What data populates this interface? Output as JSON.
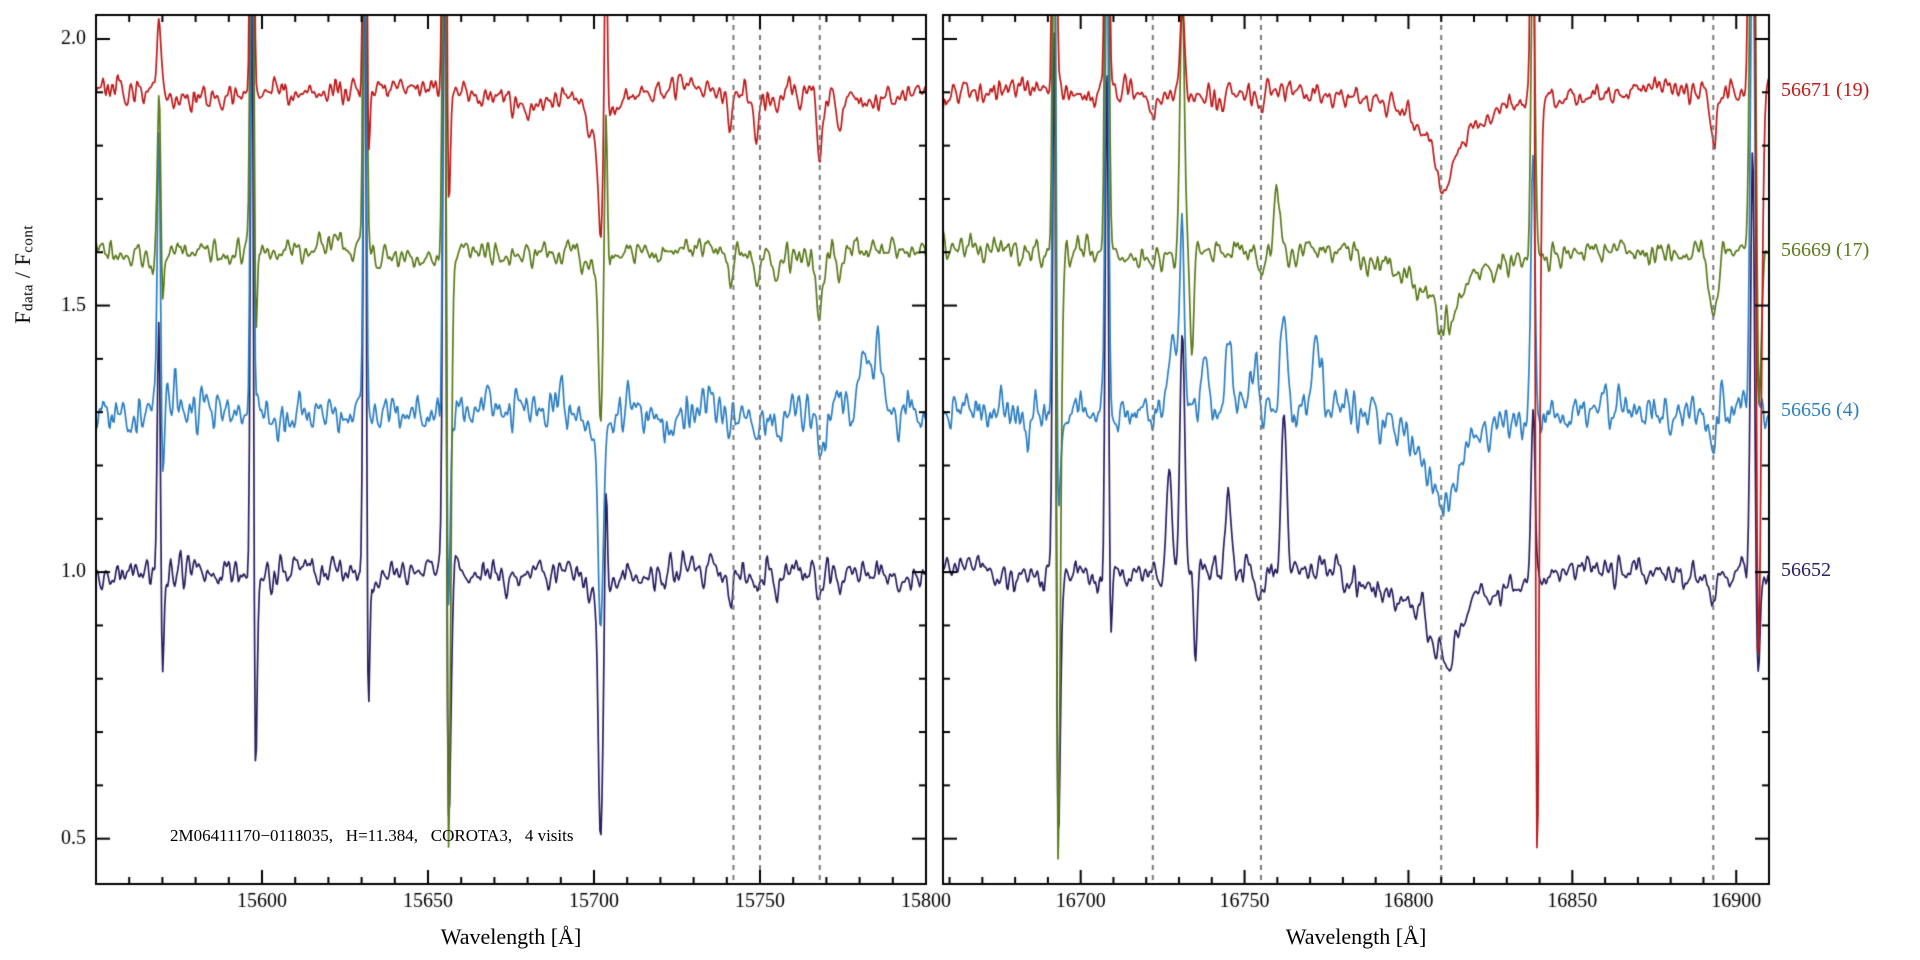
{
  "chart_data": {
    "type": "line",
    "title": "",
    "xlabel": "Wavelength [Å]",
    "ylabel": {
      "f1": "F",
      "sub1": "data",
      "sep": " / F",
      "sub2": "cont"
    },
    "annotation": "2M06411170−0118035,   H=11.384,   COROTA3,   4 visits",
    "ylim": [
      0.415,
      2.045
    ],
    "yticks": [
      0.5,
      1.0,
      1.5,
      2.0
    ],
    "ytick_labels": [
      "0.5",
      "1.0",
      "1.5",
      "2.0"
    ],
    "y_minor_step": 0.1,
    "grid": false,
    "legend_position": "right-outside",
    "dashed_line_color": "#7a7a7a",
    "axis_color": "#000000",
    "panels": [
      {
        "xlim": [
          15550,
          15800
        ],
        "xticks": [
          15600,
          15650,
          15700,
          15750,
          15800
        ],
        "xtick_labels": [
          "15600",
          "15650",
          "15700",
          "15750",
          "15800"
        ],
        "x_minor_step": 10,
        "dashed_lines": [
          15742,
          15750,
          15768
        ]
      },
      {
        "xlim": [
          16658,
          16910
        ],
        "xticks": [
          16700,
          16750,
          16800,
          16850,
          16900
        ],
        "xtick_labels": [
          "16700",
          "16750",
          "16800",
          "16850",
          "16900"
        ],
        "x_minor_step": 10,
        "dashed_lines": [
          16722,
          16755,
          16810,
          16893
        ]
      }
    ],
    "series": [
      {
        "label": "56652",
        "color": "#2a2060",
        "offset": 1.0,
        "noise": 0.014,
        "seed": 11,
        "features": [
          [
            [
              15569,
              0.5,
              0.5
            ],
            [
              15569.9,
              0.5,
              -0.28
            ],
            [
              15597,
              0.45,
              1.3
            ],
            [
              15597.9,
              0.5,
              -0.45
            ],
            [
              15631,
              0.45,
              1.4
            ],
            [
              15631.8,
              0.5,
              -0.38
            ],
            [
              15655,
              0.5,
              1.4
            ],
            [
              15656.1,
              0.7,
              -0.58
            ],
            [
              15701,
              3.5,
              -0.05
            ],
            [
              15702,
              0.7,
              -0.44
            ],
            [
              15703.6,
              0.4,
              0.22
            ],
            [
              15741,
              0.8,
              -0.05
            ],
            [
              15749,
              0.8,
              -0.05
            ],
            [
              15755,
              0.8,
              -0.04
            ],
            [
              15768,
              0.9,
              -0.06
            ],
            [
              15774,
              0.8,
              -0.04
            ]
          ],
          [
            [
              16692,
              0.5,
              1.3
            ],
            [
              16692.9,
              0.8,
              -0.6
            ],
            [
              16708,
              0.5,
              1.0
            ],
            [
              16709,
              0.5,
              -0.15
            ],
            [
              16727,
              0.8,
              0.2
            ],
            [
              16731,
              0.7,
              0.45
            ],
            [
              16735,
              0.6,
              -0.15
            ],
            [
              16745,
              0.8,
              0.15
            ],
            [
              16755,
              0.8,
              -0.05
            ],
            [
              16762,
              0.8,
              0.3
            ],
            [
              16811,
              3,
              -0.08
            ],
            [
              16811,
              8,
              -0.05
            ],
            [
              16811,
              18,
              -0.035
            ],
            [
              16838,
              0.6,
              0.3
            ],
            [
              16893,
              1.0,
              -0.07
            ],
            [
              16905,
              0.6,
              0.8
            ],
            [
              16906.6,
              0.6,
              -0.2
            ]
          ]
        ]
      },
      {
        "label": "56656 (4)",
        "color": "#2d7fc3",
        "offset": 1.3,
        "noise": 0.021,
        "seed": 22,
        "features": [
          [
            [
              15569,
              0.5,
              0.55
            ],
            [
              15570,
              0.5,
              -0.2
            ],
            [
              15597,
              0.45,
              1.1
            ],
            [
              15631,
              0.45,
              0.95
            ],
            [
              15655,
              0.5,
              1.1
            ],
            [
              15656,
              0.6,
              -0.5
            ],
            [
              15701,
              3.5,
              -0.06
            ],
            [
              15702,
              0.7,
              -0.35
            ],
            [
              15741,
              0.8,
              -0.05
            ],
            [
              15749,
              0.8,
              -0.06
            ],
            [
              15755,
              0.8,
              -0.05
            ],
            [
              15768,
              0.9,
              -0.09
            ],
            [
              15782,
              2,
              0.1
            ],
            [
              15786,
              1,
              0.12
            ]
          ],
          [
            [
              16692,
              0.5,
              1.2
            ],
            [
              16693,
              0.6,
              -0.25
            ],
            [
              16708,
              0.5,
              0.95
            ],
            [
              16728,
              1.5,
              0.12
            ],
            [
              16731,
              0.7,
              0.35
            ],
            [
              16738,
              1,
              0.1
            ],
            [
              16745,
              1.2,
              0.12
            ],
            [
              16753,
              1,
              0.1
            ],
            [
              16762,
              1,
              0.18
            ],
            [
              16772,
              0.9,
              0.14
            ],
            [
              16811,
              3,
              -0.09
            ],
            [
              16811,
              8,
              -0.05
            ],
            [
              16811,
              18,
              -0.035
            ],
            [
              16838,
              0.6,
              0.5
            ],
            [
              16893,
              1,
              -0.08
            ],
            [
              16905,
              0.7,
              0.9
            ]
          ]
        ]
      },
      {
        "label": "56669 (17)",
        "color": "#5c7a1c",
        "offset": 1.6,
        "noise": 0.013,
        "seed": 33,
        "features": [
          [
            [
              15569,
              0.5,
              0.3
            ],
            [
              15570,
              0.4,
              -0.12
            ],
            [
              15597,
              0.45,
              1.4
            ],
            [
              15598,
              0.5,
              -0.2
            ],
            [
              15631,
              0.45,
              1.3
            ],
            [
              15655,
              0.5,
              1.4
            ],
            [
              15656.1,
              0.7,
              -1.2
            ],
            [
              15701,
              3.5,
              -0.05
            ],
            [
              15702,
              0.6,
              -0.3
            ],
            [
              15703.6,
              0.4,
              0.3
            ],
            [
              15741,
              0.8,
              -0.06
            ],
            [
              15749,
              0.8,
              -0.07
            ],
            [
              15755,
              0.8,
              -0.05
            ],
            [
              15768,
              0.9,
              -0.11
            ],
            [
              15774,
              0.8,
              -0.05
            ]
          ],
          [
            [
              16692,
              0.5,
              1.5
            ],
            [
              16692.9,
              0.8,
              -1.3
            ],
            [
              16708,
              0.5,
              1.4
            ],
            [
              16731,
              0.7,
              0.5
            ],
            [
              16734,
              0.6,
              -0.2
            ],
            [
              16755,
              0.8,
              -0.05
            ],
            [
              16760,
              1,
              0.12
            ],
            [
              16811,
              3,
              -0.07
            ],
            [
              16811,
              8,
              -0.045
            ],
            [
              16811,
              18,
              -0.03
            ],
            [
              16838,
              0.6,
              0.6
            ],
            [
              16893,
              1.2,
              -0.12
            ],
            [
              16905,
              0.7,
              1.2
            ],
            [
              16907,
              0.6,
              -0.3
            ]
          ]
        ]
      },
      {
        "label": "56671 (19)",
        "color": "#bf1a1a",
        "offset": 1.9,
        "noise": 0.012,
        "seed": 44,
        "features": [
          [
            [
              15569,
              0.5,
              0.14
            ],
            [
              15597,
              0.45,
              1.3
            ],
            [
              15631,
              0.45,
              1.0
            ],
            [
              15632,
              0.5,
              -0.15
            ],
            [
              15655,
              0.5,
              1.4
            ],
            [
              15656,
              0.6,
              -0.3
            ],
            [
              15680,
              5,
              -0.03
            ],
            [
              15701,
              3.5,
              -0.06
            ],
            [
              15702,
              0.6,
              -0.2
            ],
            [
              15703.6,
              0.4,
              0.4
            ],
            [
              15741,
              0.8,
              -0.05
            ],
            [
              15749,
              0.8,
              -0.08
            ],
            [
              15755,
              0.8,
              -0.05
            ],
            [
              15762,
              0.8,
              -0.04
            ],
            [
              15768,
              0.9,
              -0.13
            ],
            [
              15774,
              0.8,
              -0.05
            ]
          ],
          [
            [
              16692,
              0.5,
              1.3
            ],
            [
              16708,
              0.5,
              1.3
            ],
            [
              16722,
              0.8,
              -0.05
            ],
            [
              16731,
              0.6,
              0.2
            ],
            [
              16755,
              0.8,
              -0.04
            ],
            [
              16811,
              3,
              -0.08
            ],
            [
              16811,
              8,
              -0.05
            ],
            [
              16811,
              18,
              -0.035
            ],
            [
              16838,
              0.5,
              1.5
            ],
            [
              16839.2,
              0.7,
              -1.5
            ],
            [
              16893,
              1,
              -0.1
            ],
            [
              16905,
              0.8,
              1.5
            ],
            [
              16906.6,
              0.9,
              -1.2
            ]
          ]
        ]
      }
    ]
  }
}
